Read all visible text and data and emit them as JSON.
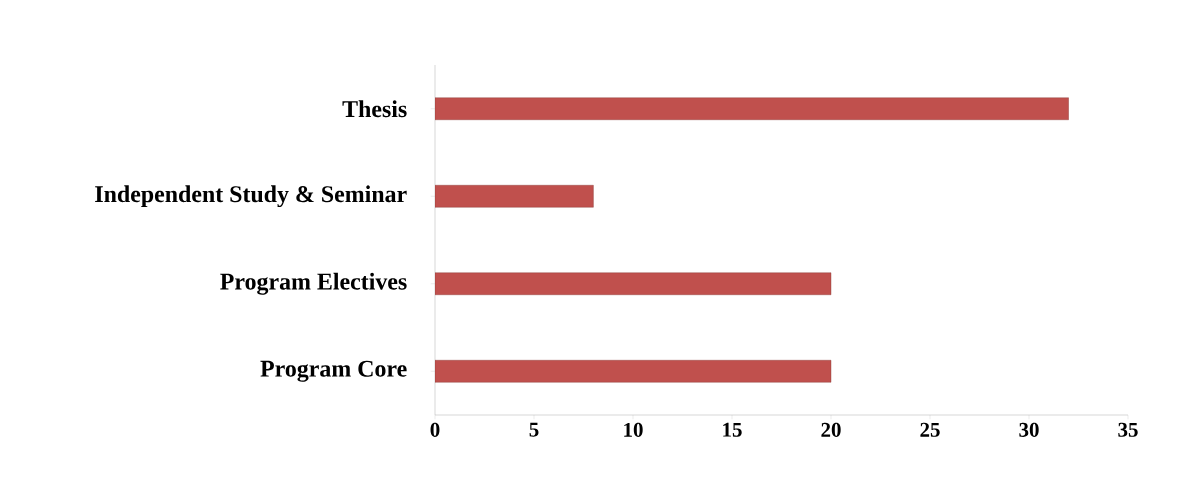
{
  "chart_data": {
    "type": "bar",
    "orientation": "horizontal",
    "categories": [
      "Thesis",
      "Independent Study & Seminar",
      "Program Electives",
      "Program Core"
    ],
    "values": [
      32,
      8,
      20,
      20
    ],
    "color": "#c0504d",
    "xlim": [
      0,
      35
    ],
    "xticks": [
      0,
      5,
      10,
      15,
      20,
      25,
      30,
      35
    ],
    "grid": false
  }
}
